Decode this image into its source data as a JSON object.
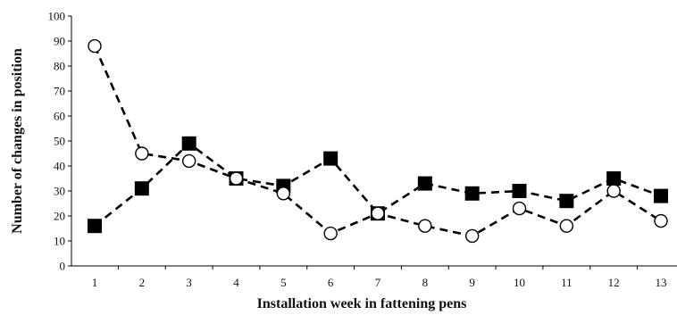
{
  "chart_data": {
    "type": "line",
    "title": "",
    "xlabel": "Installation week in fattening pens",
    "ylabel": "Number of changes in position",
    "categories": [
      "1",
      "2",
      "3",
      "4",
      "5",
      "6",
      "7",
      "8",
      "9",
      "10",
      "11",
      "12",
      "13"
    ],
    "ylim": [
      0,
      100
    ],
    "yticks": [
      0,
      10,
      20,
      30,
      40,
      50,
      60,
      70,
      80,
      90,
      100
    ],
    "grid": false,
    "legend": "none",
    "series": [
      {
        "marker": "filled-square",
        "line_style": "dashed",
        "color": "#000000",
        "values": [
          16,
          31,
          49,
          35,
          32,
          43,
          21,
          33,
          29,
          30,
          26,
          35,
          28
        ]
      },
      {
        "marker": "open-circle",
        "line_style": "dashed",
        "color": "#000000",
        "values": [
          88,
          45,
          42,
          35,
          29,
          13,
          21,
          16,
          12,
          23,
          16,
          30,
          18
        ]
      }
    ]
  }
}
